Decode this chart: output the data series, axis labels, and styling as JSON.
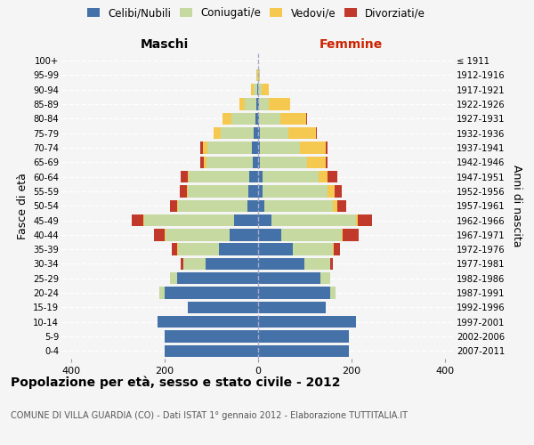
{
  "age_groups": [
    "0-4",
    "5-9",
    "10-14",
    "15-19",
    "20-24",
    "25-29",
    "30-34",
    "35-39",
    "40-44",
    "45-49",
    "50-54",
    "55-59",
    "60-64",
    "65-69",
    "70-74",
    "75-79",
    "80-84",
    "85-89",
    "90-94",
    "95-99",
    "100+"
  ],
  "birth_years": [
    "2007-2011",
    "2002-2006",
    "1997-2001",
    "1992-1996",
    "1987-1991",
    "1982-1986",
    "1977-1981",
    "1972-1976",
    "1967-1971",
    "1962-1966",
    "1957-1961",
    "1952-1956",
    "1947-1951",
    "1942-1946",
    "1937-1941",
    "1932-1936",
    "1927-1931",
    "1922-1926",
    "1917-1921",
    "1912-1916",
    "≤ 1911"
  ],
  "male_celibi": [
    200,
    200,
    215,
    150,
    200,
    172,
    112,
    82,
    60,
    50,
    22,
    20,
    18,
    10,
    12,
    8,
    5,
    3,
    1,
    0,
    0
  ],
  "male_coniugati": [
    0,
    0,
    0,
    0,
    10,
    15,
    48,
    88,
    138,
    192,
    148,
    130,
    130,
    100,
    95,
    72,
    52,
    25,
    8,
    1,
    0
  ],
  "male_vedovi": [
    0,
    0,
    0,
    0,
    0,
    0,
    0,
    2,
    2,
    2,
    2,
    2,
    2,
    5,
    10,
    15,
    18,
    12,
    5,
    1,
    0
  ],
  "male_divorziati": [
    0,
    0,
    0,
    0,
    0,
    0,
    5,
    12,
    22,
    25,
    15,
    15,
    15,
    8,
    5,
    0,
    0,
    0,
    0,
    0,
    0
  ],
  "female_nubili": [
    195,
    195,
    210,
    145,
    155,
    135,
    100,
    75,
    50,
    30,
    15,
    10,
    10,
    5,
    5,
    5,
    3,
    2,
    1,
    0,
    0
  ],
  "female_coniugate": [
    0,
    0,
    0,
    0,
    12,
    20,
    55,
    85,
    130,
    180,
    145,
    140,
    120,
    100,
    85,
    60,
    45,
    22,
    8,
    2,
    0
  ],
  "female_vedove": [
    0,
    0,
    0,
    0,
    0,
    0,
    0,
    2,
    2,
    5,
    10,
    15,
    20,
    40,
    55,
    60,
    55,
    45,
    15,
    2,
    0
  ],
  "female_divorziate": [
    0,
    0,
    0,
    0,
    0,
    0,
    5,
    15,
    35,
    30,
    20,
    15,
    20,
    5,
    5,
    2,
    2,
    0,
    0,
    0,
    0
  ],
  "color_celibi": "#4472a8",
  "color_coniugati": "#c5d9a0",
  "color_vedovi": "#f5c850",
  "color_divorziati": "#c0392b",
  "xlim": 420,
  "title": "Popolazione per età, sesso e stato civile - 2012",
  "subtitle": "COMUNE DI VILLA GUARDIA (CO) - Dati ISTAT 1° gennaio 2012 - Elaborazione TUTTITALIA.IT",
  "ylabel_left": "Fasce di età",
  "ylabel_right": "Anni di nascita",
  "label_maschi": "Maschi",
  "label_femmine": "Femmine",
  "legend_labels": [
    "Celibi/Nubili",
    "Coniugati/e",
    "Vedovi/e",
    "Divorziati/e"
  ],
  "bg_color": "#f5f5f5",
  "xticks": [
    -400,
    -200,
    0,
    200,
    400
  ]
}
